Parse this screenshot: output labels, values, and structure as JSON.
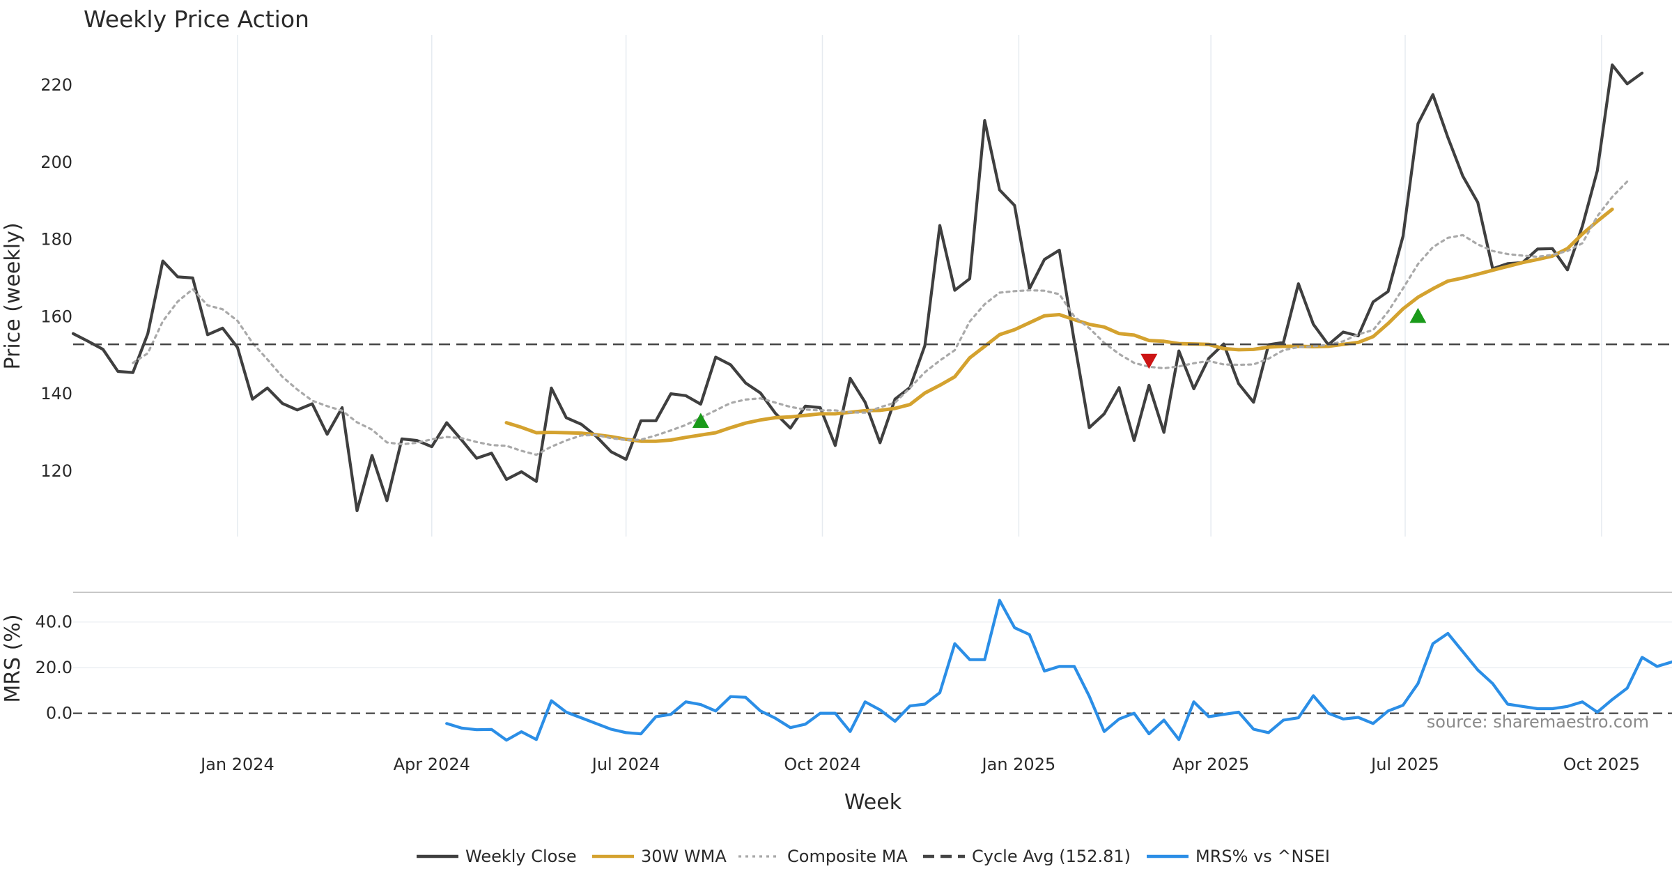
{
  "chart_data": {
    "title": "Weekly Price Action",
    "x_axis": {
      "label": "Week",
      "date_range": [
        "2023-10-16",
        "2025-11-03"
      ],
      "ticks": [
        {
          "date": "2024-01-01",
          "label": "Jan 2024"
        },
        {
          "date": "2024-04-01",
          "label": "Apr 2024"
        },
        {
          "date": "2024-07-01",
          "label": "Jul 2024"
        },
        {
          "date": "2024-10-01",
          "label": "Oct 2024"
        },
        {
          "date": "2025-01-01",
          "label": "Jan 2025"
        },
        {
          "date": "2025-04-01",
          "label": "Apr 2025"
        },
        {
          "date": "2025-07-01",
          "label": "Jul 2025"
        },
        {
          "date": "2025-10-01",
          "label": "Oct 2025"
        }
      ]
    },
    "price_panel": {
      "type": "line",
      "ylabel": "Price (weekly)",
      "ylim": [
        103,
        233
      ],
      "yticks": [
        {
          "v": 120,
          "label": "120"
        },
        {
          "v": 140,
          "label": "140"
        },
        {
          "v": 160,
          "label": "160"
        },
        {
          "v": 180,
          "label": "180"
        },
        {
          "v": 200,
          "label": "200"
        },
        {
          "v": 220,
          "label": "220"
        }
      ],
      "series": [
        {
          "name": "Weekly Close",
          "color": "#3f3f3f",
          "style": "solid",
          "values": [
            155.6,
            153.6,
            151.5,
            145.8,
            145.5,
            155.6,
            174.4,
            170.3,
            170,
            155.3,
            157,
            152,
            138.6,
            141.5,
            137.5,
            135.8,
            137.4,
            129.5,
            136.4,
            109.7,
            124,
            112.3,
            128.3,
            127.9,
            126.3,
            132.5,
            128,
            123.3,
            124.6,
            117.8,
            119.8,
            117.3,
            141.5,
            133.8,
            132.1,
            129,
            125,
            123,
            133,
            133,
            140,
            139.5,
            137.3,
            149.5,
            147.5,
            142.8,
            140.2,
            134.9,
            131.1,
            136.8,
            136.4,
            126.6,
            144,
            137.8,
            127.3,
            138.6,
            141.6,
            152.5,
            183.6,
            166.8,
            169.8,
            210.8,
            192.8,
            188.8,
            167.2,
            174.8,
            177.2,
            153.5,
            131.2,
            134.8,
            141.6,
            127.9,
            142.2,
            130,
            151.1,
            141.3,
            149.2,
            152.9,
            142.6,
            137.8,
            152.7,
            153.3,
            168.5,
            158,
            152.7,
            156,
            155,
            163.8,
            166.5,
            180.8,
            210,
            217.5,
            206.4,
            196.4,
            189.6,
            172.4,
            173.7,
            174,
            177.5,
            177.6,
            172.1,
            183.4,
            197.8,
            225.2,
            220.3,
            223.1
          ]
        },
        {
          "name": "30W WMA",
          "color": "#d4a22f",
          "style": "solid",
          "start_index": 29,
          "values": [
            132.5,
            131.3,
            129.9,
            130.0,
            129.9,
            129.8,
            129.4,
            128.9,
            128.2,
            127.7,
            127.7,
            128.0,
            128.7,
            129.3,
            129.9,
            131.2,
            132.4,
            133.2,
            133.8,
            134.0,
            134.4,
            134.8,
            134.8,
            135.2,
            135.6,
            135.7,
            136.2,
            137.2,
            140.2,
            142.2,
            144.4,
            149.3,
            152.3,
            155.3,
            156.6,
            158.4,
            160.2,
            160.5,
            159.2,
            158.0,
            157.3,
            155.6,
            155.2,
            153.8,
            153.6,
            153.0,
            152.9,
            152.8,
            151.7,
            151.4,
            151.5,
            152.1,
            152.3,
            152.3,
            152.2,
            152.3,
            152.8,
            153.3,
            154.8,
            158.2,
            162.0,
            165.0,
            167.2,
            169.2,
            170.0,
            171.0,
            172.0,
            173.0,
            174.0,
            174.8,
            175.7,
            177.6,
            181.4,
            184.7,
            187.8
          ]
        },
        {
          "name": "Composite MA",
          "color": "#a9a9a9",
          "style": "dotted",
          "start_index": 4,
          "values": [
            148.0,
            150.5,
            158.8,
            163.9,
            167.1,
            162.9,
            161.9,
            158.9,
            153.2,
            148.9,
            144.4,
            141.1,
            138.2,
            136.8,
            135.6,
            132.6,
            130.7,
            127.4,
            126.9,
            127.3,
            128.2,
            128.8,
            128.5,
            127.5,
            126.7,
            126.5,
            125.2,
            124.2,
            126.3,
            127.9,
            129.2,
            129.3,
            128.5,
            128.0,
            128.1,
            129.2,
            130.5,
            131.9,
            133.8,
            135.7,
            137.6,
            138.5,
            138.8,
            137.7,
            136.6,
            135.9,
            135.7,
            135.7,
            135.2,
            135.1,
            136.5,
            137.7,
            141.5,
            145.6,
            148.6,
            151.3,
            158.7,
            163.2,
            166.2,
            166.6,
            166.8,
            166.7,
            165.8,
            160.0,
            157.0,
            153.2,
            150.3,
            148.0,
            147.0,
            146.6,
            147.1,
            147.9,
            148.5,
            147.6,
            147.5,
            147.6,
            149.1,
            151.3,
            152.1,
            152.3,
            152.7,
            153.6,
            155.4,
            156.5,
            161.3,
            167.3,
            173.6,
            178.0,
            180.4,
            181.1,
            178.7,
            177.0,
            176.2,
            175.8,
            175.5,
            176.0,
            177.0,
            179.0,
            186.0,
            191.0,
            195.0
          ]
        },
        {
          "name": "Cycle Avg (152.81)",
          "color": "#444444",
          "style": "dashed",
          "constant": 152.81
        }
      ],
      "markers": [
        {
          "type": "buy",
          "symbol": "triangle-up",
          "color": "#1a9a1a",
          "index": 42,
          "value": 133.0
        },
        {
          "type": "sell",
          "symbol": "triangle-down",
          "color": "#cc1414",
          "index": 72,
          "value": 148.5
        },
        {
          "type": "buy",
          "symbol": "triangle-up",
          "color": "#1a9a1a",
          "index": 90,
          "value": 160.2
        }
      ]
    },
    "mrs_panel": {
      "type": "line",
      "ylabel": "MRS (%)",
      "ylim": [
        -16,
        53
      ],
      "yticks": [
        {
          "v": 0,
          "label": "0.0"
        },
        {
          "v": 20,
          "label": "20.0"
        },
        {
          "v": 40,
          "label": "40.0"
        }
      ],
      "zero_line": {
        "value": 0,
        "style": "dashed"
      },
      "annotation": "source: sharemaestro.com",
      "series": [
        {
          "name": "MRS% vs ^NSEI",
          "color": "#2b8ee6",
          "style": "solid",
          "start_index": 25,
          "values": [
            -4.5,
            -6.5,
            -7.2,
            -7.1,
            -11.8,
            -8.1,
            -11.5,
            5.5,
            0.5,
            -2,
            -4.5,
            -7,
            -8.5,
            -9,
            -1.5,
            -0.5,
            5,
            3.8,
            1,
            7.3,
            7,
            1,
            -2.2,
            -6.3,
            -4.8,
            0,
            0,
            -8,
            5,
            1.5,
            -3.5,
            3.2,
            4,
            9,
            30.5,
            23.5,
            23.5,
            49.5,
            37.5,
            34.5,
            18.5,
            20.5,
            20.5,
            7.5,
            -8,
            -2.5,
            0,
            -9,
            -3,
            -11.5,
            5,
            -1.5,
            -0.5,
            0.5,
            -7,
            -8.5,
            -3,
            -2,
            7.7,
            0,
            -2.5,
            -1.8,
            -4.5,
            1,
            3.5,
            13,
            30.5,
            35,
            27,
            19,
            13,
            4,
            3,
            2,
            2,
            3,
            5,
            0.5,
            6,
            11,
            24.5,
            20.5,
            22.5
          ]
        }
      ]
    },
    "legend": {
      "placement": "bottom-center",
      "entries": [
        {
          "label": "Weekly Close",
          "color": "#3f3f3f",
          "style": "solid"
        },
        {
          "label": "30W WMA",
          "color": "#d4a22f",
          "style": "solid"
        },
        {
          "label": "Composite MA",
          "color": "#a9a9a9",
          "style": "dotted"
        },
        {
          "label": "Cycle Avg (152.81)",
          "color": "#444444",
          "style": "dashed"
        },
        {
          "label": "MRS% vs ^NSEI",
          "color": "#2b8ee6",
          "style": "solid"
        }
      ]
    }
  }
}
